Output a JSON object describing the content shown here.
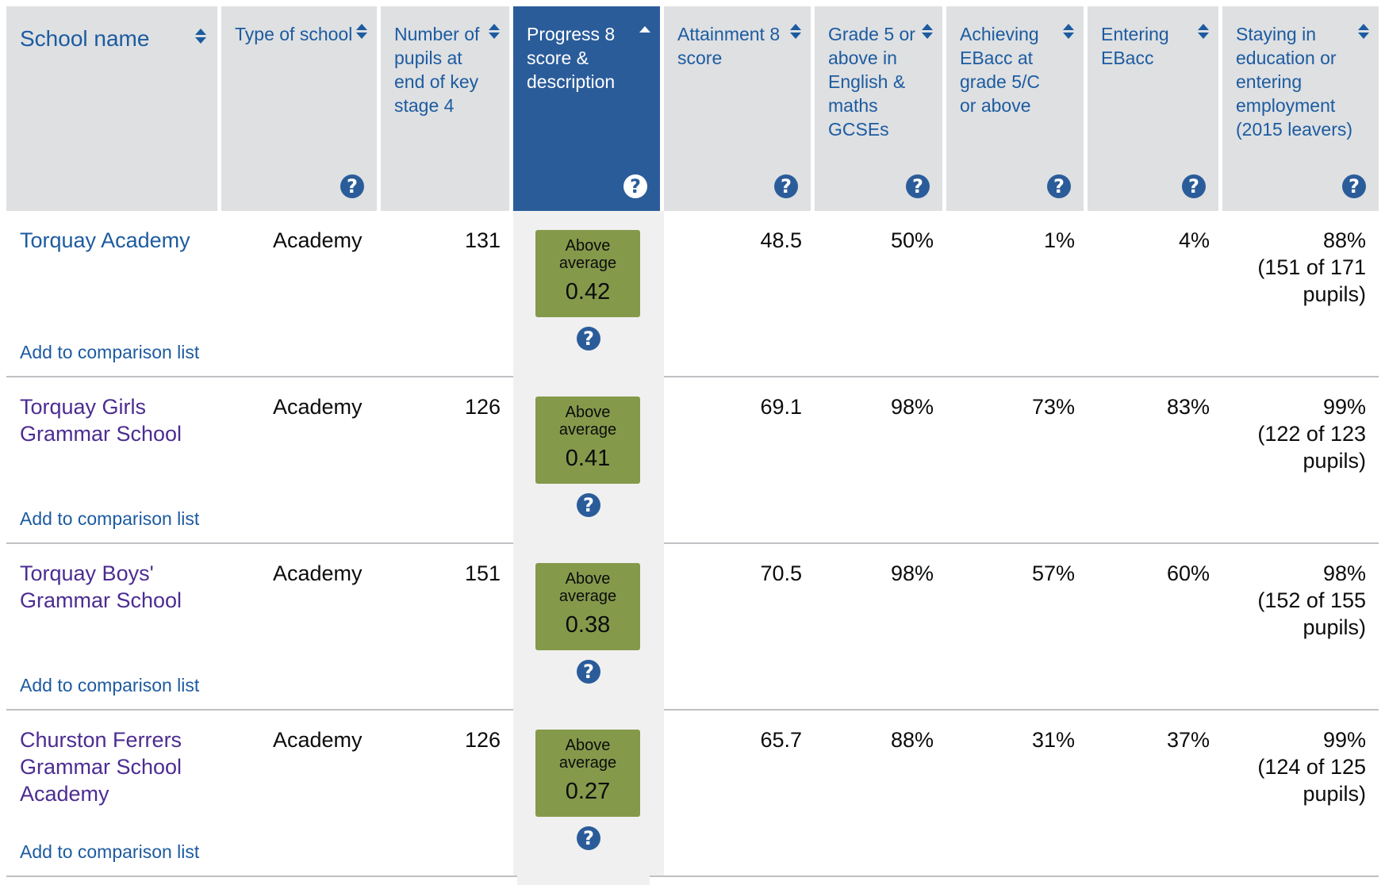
{
  "headers": [
    {
      "label": "School name",
      "sort": "both",
      "help": false,
      "active": false
    },
    {
      "label": "Type of school",
      "sort": "both",
      "help": true,
      "active": false
    },
    {
      "label": "Number of pupils at end of key stage 4",
      "sort": "both",
      "help": false,
      "active": false
    },
    {
      "label": "Progress 8 score & description",
      "sort": "ascending",
      "help": true,
      "active": true
    },
    {
      "label": "Attainment 8 score",
      "sort": "both",
      "help": true,
      "active": false
    },
    {
      "label": "Grade 5 or above in English & maths GCSEs",
      "sort": "both",
      "help": true,
      "active": false
    },
    {
      "label": "Achieving EBacc at grade 5/C or above",
      "sort": "both",
      "help": true,
      "active": false
    },
    {
      "label": "Entering EBacc",
      "sort": "both",
      "help": true,
      "active": false
    },
    {
      "label": "Staying in education or entering employment (2015 leavers)",
      "sort": "both",
      "help": true,
      "active": false
    }
  ],
  "help_glyph": "?",
  "add_to_comparison_label": "Add to comparison list",
  "rows": [
    {
      "school": "Torquay Academy",
      "type": "Academy",
      "pupils": "131",
      "p8_desc": "Above average",
      "p8_score": "0.42",
      "attainment8": "48.5",
      "grade5_eng_maths": "50%",
      "ebacc_achieving": "1%",
      "ebacc_entering": "4%",
      "staying_pct": "88%",
      "staying_detail": "(151 of 171 pupils)"
    },
    {
      "school": "Torquay Girls Grammar School",
      "type": "Academy",
      "pupils": "126",
      "p8_desc": "Above average",
      "p8_score": "0.41",
      "attainment8": "69.1",
      "grade5_eng_maths": "98%",
      "ebacc_achieving": "73%",
      "ebacc_entering": "83%",
      "staying_pct": "99%",
      "staying_detail": "(122 of 123 pupils)"
    },
    {
      "school": "Torquay Boys' Grammar School",
      "type": "Academy",
      "pupils": "151",
      "p8_desc": "Above average",
      "p8_score": "0.38",
      "attainment8": "70.5",
      "grade5_eng_maths": "98%",
      "ebacc_achieving": "57%",
      "ebacc_entering": "60%",
      "staying_pct": "98%",
      "staying_detail": "(152 of 155 pupils)"
    },
    {
      "school": "Churston Ferrers Grammar School Academy",
      "type": "Academy",
      "pupils": "126",
      "p8_desc": "Above average",
      "p8_score": "0.27",
      "attainment8": "65.7",
      "grade5_eng_maths": "88%",
      "ebacc_achieving": "31%",
      "ebacc_entering": "37%",
      "staying_pct": "99%",
      "staying_detail": "(124 of 125 pupils)"
    }
  ],
  "colors": {
    "header_bg": "#dee0e2",
    "active_header_bg": "#2b5c9a",
    "link": "#1d5ba0",
    "visited_link": "#4c2c92",
    "badge_above_average": "#85994b",
    "progress_column_bg": "#f0f0f0"
  },
  "icons": {
    "sort": "sort-arrows-icon",
    "sort_active": "sort-ascending-icon",
    "help": "help-question-icon"
  }
}
